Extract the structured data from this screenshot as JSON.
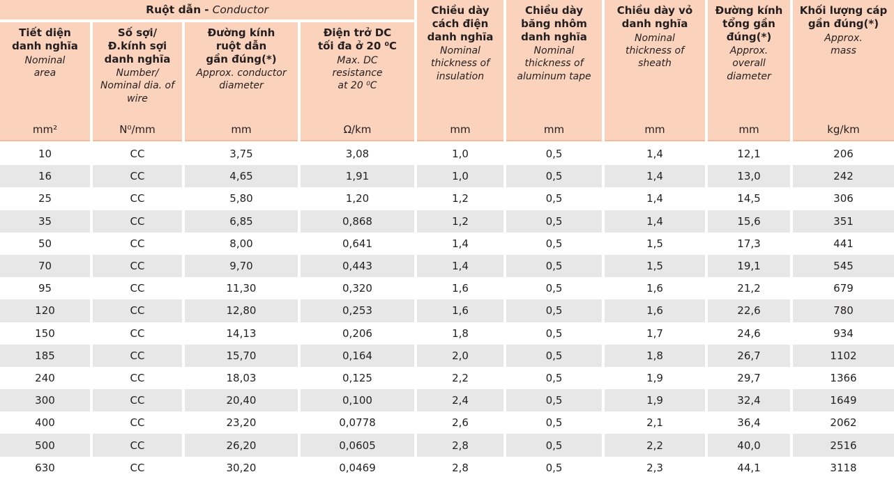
{
  "table": {
    "group": {
      "title_vi": "Ruột dẫn",
      "separator": "-",
      "title_en": "Conductor"
    },
    "columns": [
      {
        "title_vi": "Tiết diện\ndanh nghĩa",
        "title_en": "Nominal\narea",
        "unit": "mm²"
      },
      {
        "title_vi": "Số sợi/\nĐ.kính sợi\ndanh nghĩa",
        "title_en": "Number/\nNominal dia. of\nwire",
        "unit": "N⁰/mm"
      },
      {
        "title_vi": "Đường kính\nruột dẫn\ngần đúng(*)",
        "title_en": "Approx. conductor\ndiameter",
        "unit": "mm"
      },
      {
        "title_vi": "Điện trở DC\ntối đa ở 20 ⁰C",
        "title_en": "Max. DC\nresistance\nat 20 ⁰C",
        "unit": "Ω/km"
      },
      {
        "title_vi": "Chiều dày\ncách điện\ndanh nghĩa",
        "title_en": "Nominal\nthickness of\ninsulation",
        "unit": "mm"
      },
      {
        "title_vi": "Chiều dày\nbăng nhôm\ndanh nghĩa",
        "title_en": "Nominal\nthickness of\naluminum tape",
        "unit": "mm"
      },
      {
        "title_vi": "Chiều dày vỏ\ndanh nghĩa",
        "title_en": "Nominal\nthickness of\nsheath",
        "unit": "mm"
      },
      {
        "title_vi": "Đường kính\ntổng gần\nđúng(*)",
        "title_en": "Approx.\noverall\ndiameter",
        "unit": "mm"
      },
      {
        "title_vi": "Khối lượng cáp\ngần đúng(*)",
        "title_en": "Approx.\nmass",
        "unit": "kg/km"
      }
    ],
    "rows": [
      [
        "10",
        "CC",
        "3,75",
        "3,08",
        "1,0",
        "0,5",
        "1,4",
        "12,1",
        "206"
      ],
      [
        "16",
        "CC",
        "4,65",
        "1,91",
        "1,0",
        "0,5",
        "1,4",
        "13,0",
        "242"
      ],
      [
        "25",
        "CC",
        "5,80",
        "1,20",
        "1,2",
        "0,5",
        "1,4",
        "14,5",
        "306"
      ],
      [
        "35",
        "CC",
        "6,85",
        "0,868",
        "1,2",
        "0,5",
        "1,4",
        "15,6",
        "351"
      ],
      [
        "50",
        "CC",
        "8,00",
        "0,641",
        "1,4",
        "0,5",
        "1,5",
        "17,3",
        "441"
      ],
      [
        "70",
        "CC",
        "9,70",
        "0,443",
        "1,4",
        "0,5",
        "1,5",
        "19,1",
        "545"
      ],
      [
        "95",
        "CC",
        "11,30",
        "0,320",
        "1,6",
        "0,5",
        "1,6",
        "21,2",
        "679"
      ],
      [
        "120",
        "CC",
        "12,80",
        "0,253",
        "1,6",
        "0,5",
        "1,6",
        "22,6",
        "780"
      ],
      [
        "150",
        "CC",
        "14,13",
        "0,206",
        "1,8",
        "0,5",
        "1,7",
        "24,6",
        "934"
      ],
      [
        "185",
        "CC",
        "15,70",
        "0,164",
        "2,0",
        "0,5",
        "1,8",
        "26,7",
        "1102"
      ],
      [
        "240",
        "CC",
        "18,03",
        "0,125",
        "2,2",
        "0,5",
        "1,9",
        "29,7",
        "1366"
      ],
      [
        "300",
        "CC",
        "20,40",
        "0,100",
        "2,4",
        "0,5",
        "1,9",
        "32,4",
        "1649"
      ],
      [
        "400",
        "CC",
        "23,20",
        "0,0778",
        "2,6",
        "0,5",
        "2,1",
        "36,4",
        "2062"
      ],
      [
        "500",
        "CC",
        "26,20",
        "0,0605",
        "2,8",
        "0,5",
        "2,2",
        "40,0",
        "2516"
      ],
      [
        "630",
        "CC",
        "30,20",
        "0,0469",
        "2,8",
        "0,5",
        "2,3",
        "44,1",
        "3118"
      ]
    ]
  },
  "colors": {
    "header_bg": "#fbd2bc",
    "header_border": "#f2bb9e",
    "row_alt_bg": "#e7e7e7",
    "text": "#231f20"
  }
}
